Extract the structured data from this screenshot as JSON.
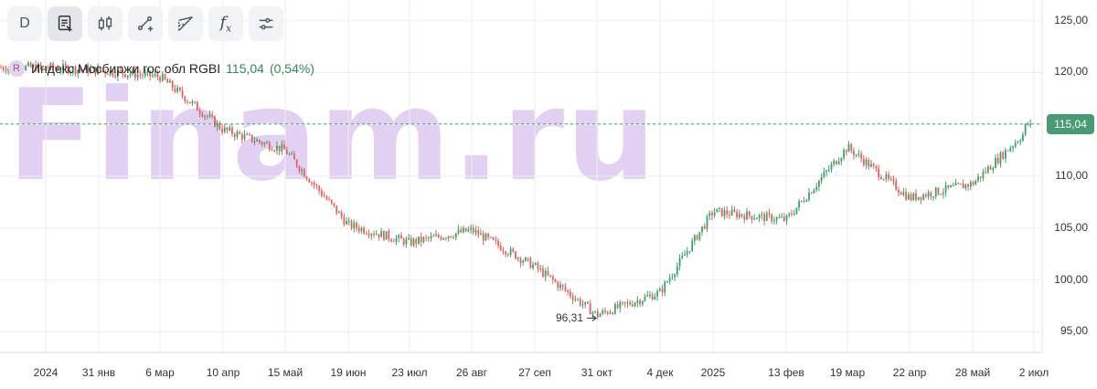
{
  "toolbar": {
    "interval_label": "D",
    "tools": [
      {
        "name": "notes-icon"
      },
      {
        "name": "candles-icon"
      },
      {
        "name": "line-tool-icon"
      },
      {
        "name": "fib-tool-icon"
      },
      {
        "name": "formula-icon",
        "label": "fx"
      },
      {
        "name": "settings-sliders-icon"
      }
    ]
  },
  "legend": {
    "badge": "R",
    "name": "Индекс Мосбиржи гос обл RGBI",
    "price": "115,04",
    "change": "(0,54%)"
  },
  "watermark": "Finam.ru",
  "colors": {
    "up": "#3aa36b",
    "down": "#e8605c",
    "last_line": "#4a9a73",
    "grid": "#eeeeee"
  },
  "y_axis": {
    "ticks": [
      "125,00",
      "120,00",
      "115,00",
      "110,00",
      "105,00",
      "100,00",
      "95,00"
    ],
    "last_price_label": "115,04"
  },
  "x_axis": {
    "ticks": [
      "2024",
      "31 янв",
      "6 мар",
      "10 апр",
      "15 май",
      "19 июн",
      "23 июл",
      "26 авг",
      "27 сеп",
      "31 окт",
      "4 дек",
      "2025",
      "13 фев",
      "19 мар",
      "22 апр",
      "28 май",
      "2 июл"
    ]
  },
  "annotations": {
    "min_label": "96,31"
  },
  "chart_data": {
    "type": "candlestick",
    "title": "Индекс Мосбиржи гос обл RGBI",
    "ylim": [
      93,
      127
    ],
    "x_ticks": [
      "2024",
      "31 янв",
      "6 мар",
      "10 апр",
      "15 май",
      "19 июн",
      "23 июл",
      "26 авг",
      "27 сеп",
      "31 окт",
      "4 дек",
      "2025",
      "13 фев",
      "19 мар",
      "22 апр",
      "28 май",
      "2 июл"
    ],
    "y_ticks": [
      95,
      100,
      105,
      110,
      115,
      120,
      125
    ],
    "last_value": 115.04,
    "min_value": 96.31,
    "grid": true,
    "path": [
      [
        "2024",
        120.5
      ],
      [
        "31 янв",
        120.2
      ],
      [
        "6 мар",
        119.6
      ],
      [
        "10 апр",
        114.5
      ],
      [
        "15 май",
        112.5
      ],
      [
        "19 июн",
        105.3
      ],
      [
        "23 июл",
        103.6
      ],
      [
        "26 авг",
        104.8
      ],
      [
        "27 сеп",
        101.3
      ],
      [
        "31 окт",
        96.6
      ],
      [
        "4 дек",
        98.8
      ],
      [
        "2025",
        106.6
      ],
      [
        "13 фев",
        105.8
      ],
      [
        "19 мар",
        112.8
      ],
      [
        "22 апр",
        107.9
      ],
      [
        "28 май",
        109.3
      ],
      [
        "2 июл",
        115.04
      ]
    ]
  }
}
